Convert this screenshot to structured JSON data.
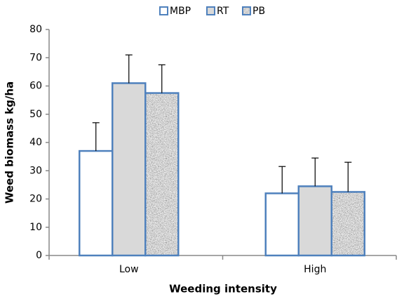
{
  "chart_data": {
    "type": "bar",
    "x_label": "Weeding intensity",
    "y_label": "Weed biomass kg/ha",
    "categories": [
      "Low",
      "High"
    ],
    "series": [
      {
        "name": "MBP",
        "color": "#ffffff",
        "values": [
          37,
          22
        ],
        "errors": [
          10,
          9.5
        ]
      },
      {
        "name": "RT",
        "color": "#d9d9d9",
        "values": [
          61,
          24.5
        ],
        "errors": [
          10,
          10
        ]
      },
      {
        "name": "PB",
        "color": "#9a9a9a",
        "values": [
          57.5,
          22.5
        ],
        "errors": [
          10,
          10.5
        ]
      }
    ],
    "edge_color": "#4f81bd",
    "ylim": [
      0,
      80
    ],
    "yticks": [
      0,
      10,
      20,
      30,
      40,
      50,
      60,
      70,
      80
    ],
    "grid": false
  }
}
